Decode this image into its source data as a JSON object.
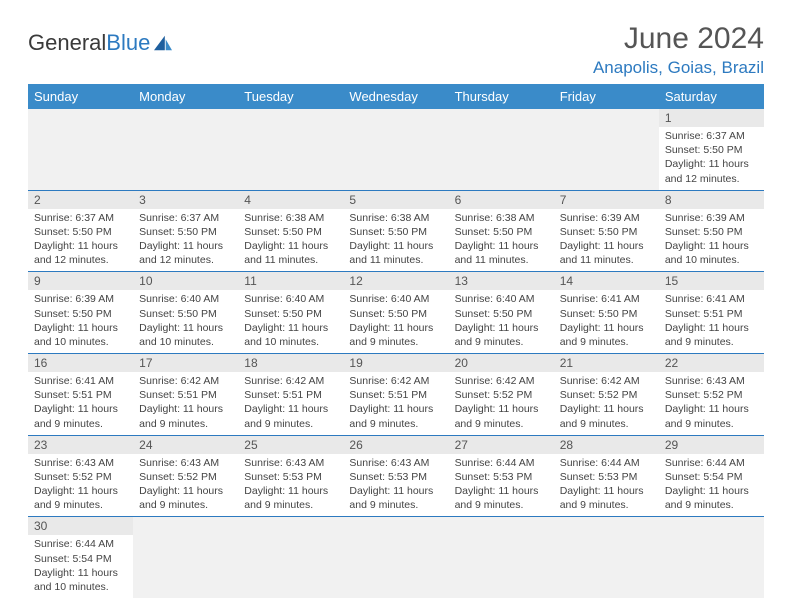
{
  "brand": {
    "part1": "General",
    "part2": "Blue"
  },
  "title": "June 2024",
  "location": "Anapolis, Goias, Brazil",
  "colors": {
    "header_bg": "#3a8bc9",
    "accent": "#2d7ac0",
    "daynum_bg": "#e9e9e9",
    "text": "#444444"
  },
  "day_headers": [
    "Sunday",
    "Monday",
    "Tuesday",
    "Wednesday",
    "Thursday",
    "Friday",
    "Saturday"
  ],
  "weeks": [
    [
      null,
      null,
      null,
      null,
      null,
      null,
      {
        "n": "1",
        "sr": "Sunrise: 6:37 AM",
        "ss": "Sunset: 5:50 PM",
        "d1": "Daylight: 11 hours",
        "d2": "and 12 minutes."
      }
    ],
    [
      {
        "n": "2",
        "sr": "Sunrise: 6:37 AM",
        "ss": "Sunset: 5:50 PM",
        "d1": "Daylight: 11 hours",
        "d2": "and 12 minutes."
      },
      {
        "n": "3",
        "sr": "Sunrise: 6:37 AM",
        "ss": "Sunset: 5:50 PM",
        "d1": "Daylight: 11 hours",
        "d2": "and 12 minutes."
      },
      {
        "n": "4",
        "sr": "Sunrise: 6:38 AM",
        "ss": "Sunset: 5:50 PM",
        "d1": "Daylight: 11 hours",
        "d2": "and 11 minutes."
      },
      {
        "n": "5",
        "sr": "Sunrise: 6:38 AM",
        "ss": "Sunset: 5:50 PM",
        "d1": "Daylight: 11 hours",
        "d2": "and 11 minutes."
      },
      {
        "n": "6",
        "sr": "Sunrise: 6:38 AM",
        "ss": "Sunset: 5:50 PM",
        "d1": "Daylight: 11 hours",
        "d2": "and 11 minutes."
      },
      {
        "n": "7",
        "sr": "Sunrise: 6:39 AM",
        "ss": "Sunset: 5:50 PM",
        "d1": "Daylight: 11 hours",
        "d2": "and 11 minutes."
      },
      {
        "n": "8",
        "sr": "Sunrise: 6:39 AM",
        "ss": "Sunset: 5:50 PM",
        "d1": "Daylight: 11 hours",
        "d2": "and 10 minutes."
      }
    ],
    [
      {
        "n": "9",
        "sr": "Sunrise: 6:39 AM",
        "ss": "Sunset: 5:50 PM",
        "d1": "Daylight: 11 hours",
        "d2": "and 10 minutes."
      },
      {
        "n": "10",
        "sr": "Sunrise: 6:40 AM",
        "ss": "Sunset: 5:50 PM",
        "d1": "Daylight: 11 hours",
        "d2": "and 10 minutes."
      },
      {
        "n": "11",
        "sr": "Sunrise: 6:40 AM",
        "ss": "Sunset: 5:50 PM",
        "d1": "Daylight: 11 hours",
        "d2": "and 10 minutes."
      },
      {
        "n": "12",
        "sr": "Sunrise: 6:40 AM",
        "ss": "Sunset: 5:50 PM",
        "d1": "Daylight: 11 hours",
        "d2": "and 9 minutes."
      },
      {
        "n": "13",
        "sr": "Sunrise: 6:40 AM",
        "ss": "Sunset: 5:50 PM",
        "d1": "Daylight: 11 hours",
        "d2": "and 9 minutes."
      },
      {
        "n": "14",
        "sr": "Sunrise: 6:41 AM",
        "ss": "Sunset: 5:50 PM",
        "d1": "Daylight: 11 hours",
        "d2": "and 9 minutes."
      },
      {
        "n": "15",
        "sr": "Sunrise: 6:41 AM",
        "ss": "Sunset: 5:51 PM",
        "d1": "Daylight: 11 hours",
        "d2": "and 9 minutes."
      }
    ],
    [
      {
        "n": "16",
        "sr": "Sunrise: 6:41 AM",
        "ss": "Sunset: 5:51 PM",
        "d1": "Daylight: 11 hours",
        "d2": "and 9 minutes."
      },
      {
        "n": "17",
        "sr": "Sunrise: 6:42 AM",
        "ss": "Sunset: 5:51 PM",
        "d1": "Daylight: 11 hours",
        "d2": "and 9 minutes."
      },
      {
        "n": "18",
        "sr": "Sunrise: 6:42 AM",
        "ss": "Sunset: 5:51 PM",
        "d1": "Daylight: 11 hours",
        "d2": "and 9 minutes."
      },
      {
        "n": "19",
        "sr": "Sunrise: 6:42 AM",
        "ss": "Sunset: 5:51 PM",
        "d1": "Daylight: 11 hours",
        "d2": "and 9 minutes."
      },
      {
        "n": "20",
        "sr": "Sunrise: 6:42 AM",
        "ss": "Sunset: 5:52 PM",
        "d1": "Daylight: 11 hours",
        "d2": "and 9 minutes."
      },
      {
        "n": "21",
        "sr": "Sunrise: 6:42 AM",
        "ss": "Sunset: 5:52 PM",
        "d1": "Daylight: 11 hours",
        "d2": "and 9 minutes."
      },
      {
        "n": "22",
        "sr": "Sunrise: 6:43 AM",
        "ss": "Sunset: 5:52 PM",
        "d1": "Daylight: 11 hours",
        "d2": "and 9 minutes."
      }
    ],
    [
      {
        "n": "23",
        "sr": "Sunrise: 6:43 AM",
        "ss": "Sunset: 5:52 PM",
        "d1": "Daylight: 11 hours",
        "d2": "and 9 minutes."
      },
      {
        "n": "24",
        "sr": "Sunrise: 6:43 AM",
        "ss": "Sunset: 5:52 PM",
        "d1": "Daylight: 11 hours",
        "d2": "and 9 minutes."
      },
      {
        "n": "25",
        "sr": "Sunrise: 6:43 AM",
        "ss": "Sunset: 5:53 PM",
        "d1": "Daylight: 11 hours",
        "d2": "and 9 minutes."
      },
      {
        "n": "26",
        "sr": "Sunrise: 6:43 AM",
        "ss": "Sunset: 5:53 PM",
        "d1": "Daylight: 11 hours",
        "d2": "and 9 minutes."
      },
      {
        "n": "27",
        "sr": "Sunrise: 6:44 AM",
        "ss": "Sunset: 5:53 PM",
        "d1": "Daylight: 11 hours",
        "d2": "and 9 minutes."
      },
      {
        "n": "28",
        "sr": "Sunrise: 6:44 AM",
        "ss": "Sunset: 5:53 PM",
        "d1": "Daylight: 11 hours",
        "d2": "and 9 minutes."
      },
      {
        "n": "29",
        "sr": "Sunrise: 6:44 AM",
        "ss": "Sunset: 5:54 PM",
        "d1": "Daylight: 11 hours",
        "d2": "and 9 minutes."
      }
    ],
    [
      {
        "n": "30",
        "sr": "Sunrise: 6:44 AM",
        "ss": "Sunset: 5:54 PM",
        "d1": "Daylight: 11 hours",
        "d2": "and 10 minutes."
      },
      null,
      null,
      null,
      null,
      null,
      null
    ]
  ]
}
